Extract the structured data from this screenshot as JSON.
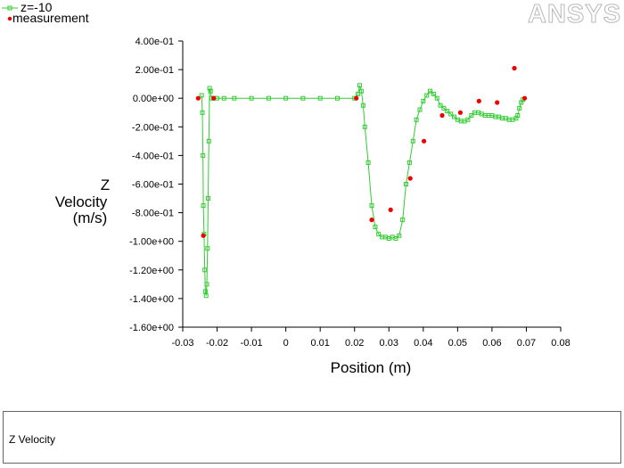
{
  "logo": {
    "text": "ANSYS"
  },
  "caption": {
    "title": "Z Velocity"
  },
  "colors": {
    "simulation": "#33cc33",
    "measurement": "#ee0000",
    "logo_fill": "#ffffff",
    "logo_stroke": "#b8b8b8"
  },
  "chart_data": {
    "type": "line",
    "xlabel": "Position (m)",
    "ylabel_lines": [
      "Z",
      "Velocity",
      "(m/s)"
    ],
    "xlim": [
      -0.03,
      0.08
    ],
    "ylim": [
      -1.6,
      0.4
    ],
    "x_ticks": [
      -0.03,
      -0.02,
      -0.01,
      0,
      0.01,
      0.02,
      0.03,
      0.04,
      0.05,
      0.06,
      0.07,
      0.08
    ],
    "x_tick_labels": [
      "-0.03",
      "-0.02",
      "-0.01",
      "0",
      "0.01",
      "0.02",
      "0.03",
      "0.04",
      "0.05",
      "0.06",
      "0.07",
      "0.08"
    ],
    "y_ticks": [
      0.4,
      0.2,
      0,
      -0.2,
      -0.4,
      -0.6,
      -0.8,
      -1.0,
      -1.2,
      -1.4,
      -1.6
    ],
    "y_tick_labels": [
      "4.00e-01",
      "2.00e-01",
      "0.00e+00",
      "-2.00e-01",
      "-4.00e-01",
      "-6.00e-01",
      "-8.00e-01",
      "-1.00e+00",
      "-1.20e+00",
      "-1.40e+00",
      "-1.60e+00"
    ],
    "legend": {
      "placement": "top-left"
    },
    "series": [
      {
        "name": "z=-10",
        "style": "line-with-square-markers",
        "x": [
          -0.0245,
          -0.0243,
          -0.0241,
          -0.024,
          -0.0238,
          -0.0236,
          -0.0234,
          -0.0232,
          -0.023,
          -0.0228,
          -0.0226,
          -0.0224,
          -0.0222,
          -0.0219,
          -0.0216,
          -0.021,
          -0.02,
          -0.018,
          -0.015,
          -0.01,
          -0.005,
          0,
          0.005,
          0.01,
          0.015,
          0.02,
          0.021,
          0.0215,
          0.022,
          0.0225,
          0.023,
          0.024,
          0.025,
          0.026,
          0.027,
          0.028,
          0.029,
          0.03,
          0.031,
          0.032,
          0.033,
          0.034,
          0.035,
          0.036,
          0.037,
          0.038,
          0.039,
          0.04,
          0.041,
          0.042,
          0.043,
          0.044,
          0.045,
          0.046,
          0.047,
          0.048,
          0.049,
          0.05,
          0.051,
          0.052,
          0.053,
          0.054,
          0.055,
          0.056,
          0.057,
          0.058,
          0.059,
          0.06,
          0.061,
          0.062,
          0.063,
          0.064,
          0.065,
          0.066,
          0.067,
          0.0675,
          0.068,
          0.0685,
          0.069
        ],
        "y": [
          0.02,
          -0.1,
          -0.4,
          -0.75,
          -0.95,
          -1.2,
          -1.35,
          -1.38,
          -1.3,
          -1.05,
          -0.7,
          -0.3,
          0.07,
          0.05,
          0.0,
          0.0,
          0.0,
          0.0,
          0.0,
          0.0,
          0.0,
          0.0,
          0.0,
          0.0,
          0.0,
          0.0,
          0.03,
          0.09,
          0.05,
          -0.05,
          -0.2,
          -0.45,
          -0.75,
          -0.9,
          -0.95,
          -0.97,
          -0.97,
          -0.98,
          -0.97,
          -0.98,
          -0.96,
          -0.85,
          -0.6,
          -0.45,
          -0.3,
          -0.15,
          -0.08,
          -0.02,
          0.02,
          0.05,
          0.03,
          0.0,
          -0.05,
          -0.07,
          -0.09,
          -0.11,
          -0.13,
          -0.15,
          -0.16,
          -0.16,
          -0.15,
          -0.12,
          -0.1,
          -0.1,
          -0.11,
          -0.12,
          -0.12,
          -0.12,
          -0.13,
          -0.13,
          -0.14,
          -0.14,
          -0.15,
          -0.15,
          -0.14,
          -0.12,
          -0.07,
          -0.03,
          -0.01
        ]
      },
      {
        "name": "measurement",
        "style": "markers-only",
        "x": [
          -0.0255,
          -0.024,
          -0.021,
          0.0205,
          0.025,
          0.0305,
          0.0362,
          0.0402,
          0.0455,
          0.0508,
          0.0562,
          0.0615,
          0.0665,
          0.0695
        ],
        "y": [
          0.0,
          -0.96,
          0.0,
          0.0,
          -0.85,
          -0.78,
          -0.56,
          -0.3,
          -0.12,
          -0.1,
          -0.02,
          -0.03,
          0.21,
          0.0
        ]
      }
    ]
  }
}
